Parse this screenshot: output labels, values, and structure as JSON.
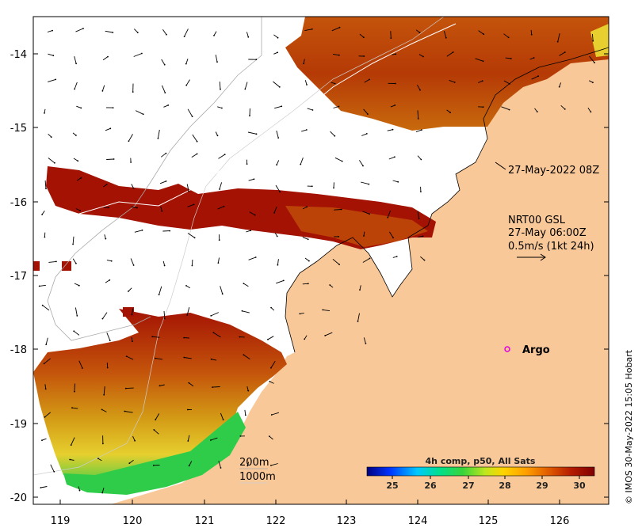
{
  "map": {
    "x_ticks": [
      "119",
      "120",
      "121",
      "122",
      "123",
      "124",
      "125",
      "126"
    ],
    "y_ticks": [
      "-14",
      "-15",
      "-16",
      "-17",
      "-18",
      "-19",
      "-20"
    ],
    "colors": {
      "land": "#f9c898",
      "warm": "#a31203",
      "mid": "#c4540b",
      "cool": "#d39a15",
      "yellow": "#e6cf2e",
      "green": "#2fcc4a",
      "ocean_gap": "#ffffff"
    }
  },
  "annotations": {
    "time_label": "27-May-2022 08Z",
    "current_title": "NRT00 GSL",
    "current_time": "27-May 06:00Z",
    "current_scale": "0.5m/s (1kt 24h)",
    "argo_label": "Argo",
    "depth_200": "200m",
    "depth_1000": "1000m",
    "credit": "© IMOS 30-May-2022 15:05 Hobart"
  },
  "colorbar": {
    "title": "4h comp, p50, All Sats",
    "ticks": [
      "25",
      "26",
      "27",
      "28",
      "29",
      "30"
    ],
    "stops": [
      "#00007f",
      "#0033ff",
      "#00c8ff",
      "#00e08c",
      "#36d43a",
      "#bfe61d",
      "#ffd400",
      "#ff9f00",
      "#e05a00",
      "#b41a00",
      "#7f0000"
    ]
  }
}
